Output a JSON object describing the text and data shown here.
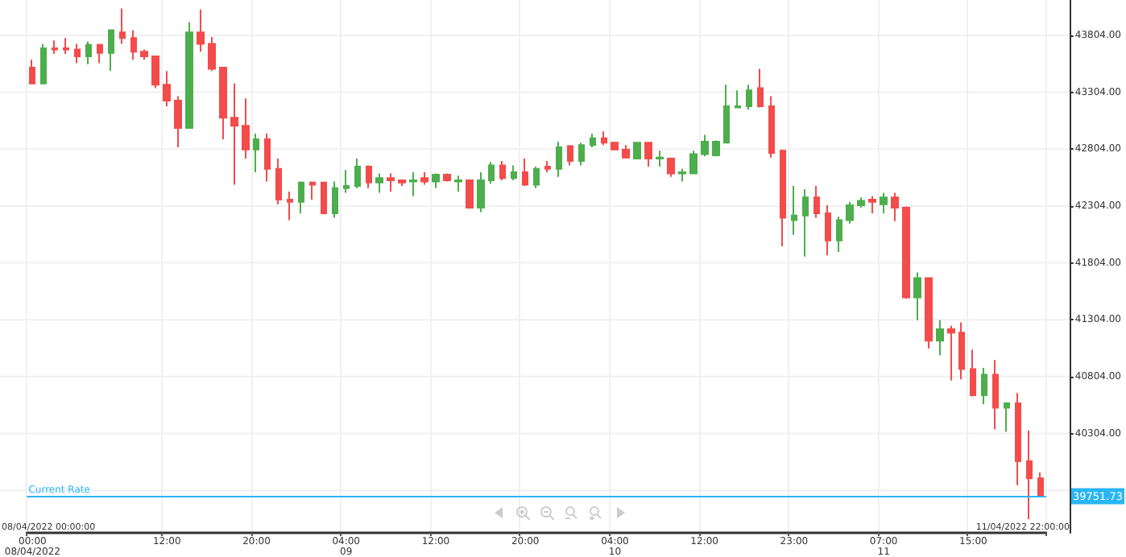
{
  "chart_data": {
    "type": "candlestick",
    "categories": [
      "00:00\n08/04/2022",
      null,
      null,
      null,
      null,
      null,
      null,
      null,
      null,
      null,
      null,
      null,
      "12:00",
      null,
      null,
      null,
      null,
      null,
      null,
      null,
      "20:00",
      null,
      null,
      null,
      null,
      null,
      null,
      null,
      "04:00\n09",
      null,
      null,
      null,
      null,
      null,
      null,
      null,
      "12:00",
      null,
      null,
      null,
      null,
      null,
      null,
      null,
      "20:00",
      null,
      null,
      null,
      null,
      null,
      null,
      null,
      "04:00\n10",
      null,
      null,
      null,
      null,
      null,
      null,
      null,
      "12:00",
      null,
      null,
      null,
      null,
      null,
      null,
      null,
      "23:00",
      null,
      null,
      null,
      null,
      null,
      null,
      null,
      "07:00\n11",
      null,
      null,
      null,
      null,
      null,
      null,
      null,
      "15:00",
      null,
      null,
      null,
      null,
      null,
      null
    ],
    "ohlc": [
      [
        43520,
        43590,
        43380,
        43380
      ],
      [
        43380,
        43730,
        43380,
        43690
      ],
      [
        43690,
        43760,
        43640,
        43680
      ],
      [
        43690,
        43780,
        43640,
        43680
      ],
      [
        43680,
        43730,
        43560,
        43620
      ],
      [
        43620,
        43750,
        43550,
        43720
      ],
      [
        43720,
        43730,
        43560,
        43650
      ],
      [
        43650,
        43850,
        43490,
        43850
      ],
      [
        43830,
        44040,
        43730,
        43780
      ],
      [
        43780,
        43850,
        43590,
        43660
      ],
      [
        43660,
        43680,
        43590,
        43620
      ],
      [
        43620,
        43620,
        43340,
        43370
      ],
      [
        43370,
        43490,
        43180,
        43230
      ],
      [
        43230,
        43270,
        42820,
        42990
      ],
      [
        42990,
        43920,
        42990,
        43830
      ],
      [
        43830,
        44030,
        43660,
        43730
      ],
      [
        43730,
        43790,
        43490,
        43510
      ],
      [
        43520,
        43520,
        42890,
        43080
      ],
      [
        43080,
        43380,
        42490,
        43010
      ],
      [
        43010,
        43250,
        42720,
        42800
      ],
      [
        42800,
        42940,
        42600,
        42890
      ],
      [
        42890,
        42940,
        42520,
        42630
      ],
      [
        42630,
        42720,
        42320,
        42360
      ],
      [
        42360,
        42430,
        42180,
        42340
      ],
      [
        42340,
        42520,
        42240,
        42510
      ],
      [
        42510,
        42520,
        42360,
        42490
      ],
      [
        42510,
        42510,
        42240,
        42240
      ],
      [
        42240,
        42520,
        42200,
        42460
      ],
      [
        42460,
        42620,
        42420,
        42480
      ],
      [
        42480,
        42720,
        42460,
        42650
      ],
      [
        42650,
        42660,
        42460,
        42510
      ],
      [
        42510,
        42590,
        42420,
        42550
      ],
      [
        42550,
        42590,
        42430,
        42530
      ],
      [
        42530,
        42530,
        42480,
        42510
      ],
      [
        42520,
        42600,
        42390,
        42530
      ],
      [
        42550,
        42600,
        42490,
        42520
      ],
      [
        42520,
        42590,
        42460,
        42580
      ],
      [
        42580,
        42590,
        42520,
        42530
      ],
      [
        42520,
        42570,
        42430,
        42530
      ],
      [
        42530,
        42530,
        42280,
        42290
      ],
      [
        42290,
        42600,
        42250,
        42530
      ],
      [
        42530,
        42690,
        42500,
        42660
      ],
      [
        42660,
        42700,
        42530,
        42550
      ],
      [
        42550,
        42660,
        42530,
        42600
      ],
      [
        42600,
        42720,
        42480,
        42490
      ],
      [
        42490,
        42650,
        42460,
        42630
      ],
      [
        42650,
        42700,
        42600,
        42630
      ],
      [
        42630,
        42870,
        42560,
        42820
      ],
      [
        42830,
        42840,
        42660,
        42700
      ],
      [
        42700,
        42860,
        42660,
        42840
      ],
      [
        42840,
        42940,
        42820,
        42900
      ],
      [
        42900,
        42960,
        42840,
        42860
      ],
      [
        42860,
        42870,
        42800,
        42800
      ],
      [
        42800,
        42840,
        42720,
        42730
      ],
      [
        42720,
        42860,
        42720,
        42860
      ],
      [
        42860,
        42860,
        42650,
        42720
      ],
      [
        42720,
        42790,
        42650,
        42730
      ],
      [
        42720,
        42730,
        42560,
        42590
      ],
      [
        42590,
        42630,
        42520,
        42600
      ],
      [
        42590,
        42790,
        42590,
        42760
      ],
      [
        42760,
        42930,
        42740,
        42870
      ],
      [
        42750,
        42880,
        42740,
        42870
      ],
      [
        42860,
        43370,
        42860,
        43180
      ],
      [
        43170,
        43320,
        43170,
        43180
      ],
      [
        43180,
        43370,
        43150,
        43320
      ],
      [
        43340,
        43510,
        43170,
        43180
      ],
      [
        43180,
        43270,
        42730,
        42770
      ],
      [
        42790,
        42800,
        41950,
        42200
      ],
      [
        42180,
        42480,
        42050,
        42220
      ],
      [
        42220,
        42450,
        41860,
        42380
      ],
      [
        42380,
        42480,
        42200,
        42240
      ],
      [
        42240,
        42310,
        41870,
        42000
      ],
      [
        42000,
        42210,
        41900,
        42180
      ],
      [
        42180,
        42340,
        42150,
        42310
      ],
      [
        42310,
        42380,
        42290,
        42350
      ],
      [
        42360,
        42390,
        42240,
        42340
      ],
      [
        42320,
        42420,
        42240,
        42380
      ],
      [
        42380,
        42420,
        42170,
        42290
      ],
      [
        42290,
        42300,
        41490,
        41500
      ],
      [
        41500,
        41720,
        41300,
        41670
      ],
      [
        41670,
        41670,
        41050,
        41120
      ],
      [
        41120,
        41300,
        40990,
        41220
      ],
      [
        41220,
        41250,
        40770,
        41190
      ],
      [
        41190,
        41280,
        40780,
        40870
      ],
      [
        40870,
        41040,
        40630,
        40640
      ],
      [
        40640,
        40880,
        40560,
        40820
      ],
      [
        40820,
        40950,
        40340,
        40530
      ],
      [
        40530,
        40570,
        40320,
        40570
      ],
      [
        40570,
        40660,
        39850,
        40060
      ],
      [
        40060,
        40330,
        39550,
        39910
      ],
      [
        39910,
        39960,
        39750,
        39751.73
      ]
    ],
    "ylim": [
      39430,
      44115
    ],
    "yticks": [
      {
        "value": 39804,
        "label": null
      },
      {
        "value": 40304,
        "label": "40304.00"
      },
      {
        "value": 40804,
        "label": "40804.00"
      },
      {
        "value": 41304,
        "label": "41304.00"
      },
      {
        "value": 41804,
        "label": "41804.00"
      },
      {
        "value": 42304,
        "label": "42304.00"
      },
      {
        "value": 42804,
        "label": "42804.00"
      },
      {
        "value": 43304,
        "label": "43304.00"
      },
      {
        "value": 43804,
        "label": "43804.00"
      }
    ],
    "grid": true,
    "ref_lines": [
      {
        "axis": "y",
        "value": 39751.73,
        "label": "Current Rate",
        "color": "#29b6f6"
      }
    ],
    "annotations": [
      "08/04/2022 00:00:00",
      "11/04/2022 22:00:00",
      "39751.73"
    ]
  }
}
